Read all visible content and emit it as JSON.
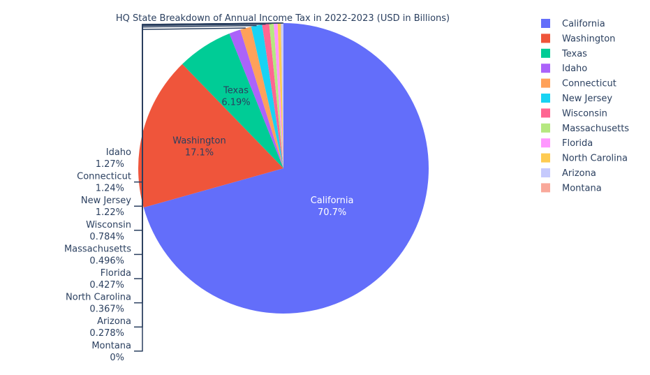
{
  "chart_data": {
    "type": "pie",
    "title": "HQ State Breakdown of Annual Income Tax in 2022-2023 (USD in Billions)",
    "legend_position": "right",
    "slices": [
      {
        "label": "California",
        "percent_label": "70.7%",
        "percent": 70.7,
        "color": "#636efa",
        "text_color": "#ffffff",
        "label_mode": "inside"
      },
      {
        "label": "Washington",
        "percent_label": "17.1%",
        "percent": 17.1,
        "color": "#EF553B",
        "text_color": "#2a3f5f",
        "label_mode": "inside"
      },
      {
        "label": "Texas",
        "percent_label": "6.19%",
        "percent": 6.19,
        "color": "#00cc96",
        "text_color": "#2a3f5f",
        "label_mode": "inside"
      },
      {
        "label": "Idaho",
        "percent_label": "1.27%",
        "percent": 1.27,
        "color": "#ab63fa",
        "label_mode": "outside"
      },
      {
        "label": "Connecticut",
        "percent_label": "1.24%",
        "percent": 1.24,
        "color": "#FFA15A",
        "label_mode": "outside"
      },
      {
        "label": "New Jersey",
        "percent_label": "1.22%",
        "percent": 1.22,
        "color": "#19d3f3",
        "label_mode": "outside"
      },
      {
        "label": "Wisconsin",
        "percent_label": "0.784%",
        "percent": 0.784,
        "color": "#FF6692",
        "label_mode": "outside"
      },
      {
        "label": "Massachusetts",
        "percent_label": "0.496%",
        "percent": 0.496,
        "color": "#B6E880",
        "label_mode": "outside"
      },
      {
        "label": "Florida",
        "percent_label": "0.427%",
        "percent": 0.427,
        "color": "#FF97FF",
        "label_mode": "outside"
      },
      {
        "label": "North Carolina",
        "percent_label": "0.367%",
        "percent": 0.367,
        "color": "#FECB52",
        "label_mode": "outside"
      },
      {
        "label": "Arizona",
        "percent_label": "0.278%",
        "percent": 0.278,
        "color": "#c6cafd",
        "label_mode": "outside"
      },
      {
        "label": "Montana",
        "percent_label": "0%",
        "percent": 0,
        "color": "#f9a89a",
        "label_mode": "outside"
      }
    ]
  }
}
